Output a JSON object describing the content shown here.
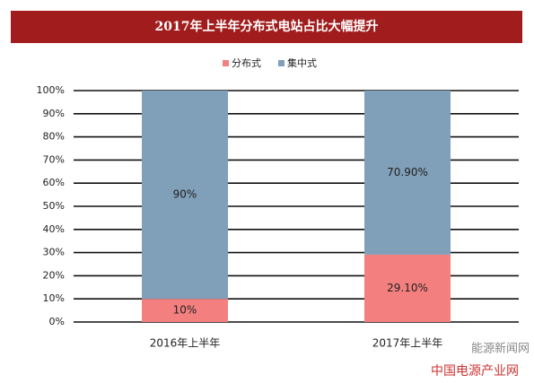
{
  "chart_data": {
    "type": "stacked_bar",
    "title": "2017年上半年分布式电站占比大幅提升",
    "categories": [
      "2016年上半年",
      "2017年上半年"
    ],
    "series": [
      {
        "name": "分布式",
        "color": "#f47f7f",
        "values": [
          10,
          29.1
        ],
        "value_labels": [
          "10%",
          "29.10%"
        ]
      },
      {
        "name": "集中式",
        "color": "#809fb8",
        "values": [
          90,
          70.9
        ],
        "value_labels": [
          "90%",
          "70.90%"
        ]
      }
    ],
    "ylim": [
      0,
      100
    ],
    "yticks": [
      {
        "value": 0,
        "label": "0%"
      },
      {
        "value": 10,
        "label": "10%"
      },
      {
        "value": 20,
        "label": "20%"
      },
      {
        "value": 30,
        "label": "30%"
      },
      {
        "value": 40,
        "label": "40%"
      },
      {
        "value": 50,
        "label": "50%"
      },
      {
        "value": 60,
        "label": "60%"
      },
      {
        "value": 70,
        "label": "70%"
      },
      {
        "value": 80,
        "label": "80%"
      },
      {
        "value": 90,
        "label": "90%"
      },
      {
        "value": 100,
        "label": "100%"
      }
    ],
    "grid": true,
    "legend": "top",
    "watermarks": [
      "能源新闻网",
      "中国电源产业网"
    ]
  }
}
